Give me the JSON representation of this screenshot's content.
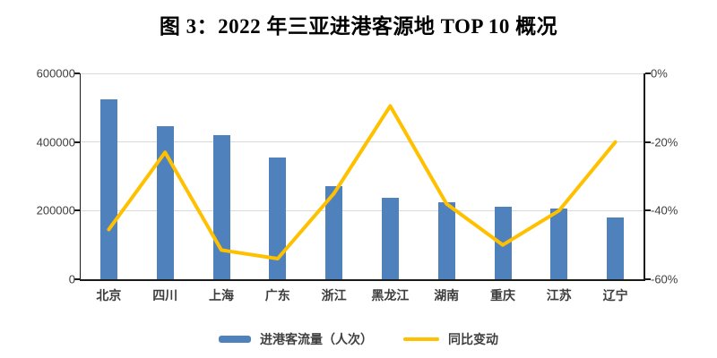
{
  "title": "图 3：2022 年三亚进港客源地 TOP 10 概况",
  "legend": {
    "bar_label": "进港客流量（人次）",
    "line_label": "同比变动"
  },
  "colors": {
    "bar": "#4f81bd",
    "line": "#ffc000",
    "gridline": "#d9d9d9",
    "axis": "#1a1a1a",
    "tick_text": "#404040"
  },
  "chart_data": {
    "type": "bar",
    "subtype": "combo-bar-line-dual-axis",
    "title": "图 3：2022 年三亚进港客源地 TOP 10 概况",
    "categories": [
      "北京",
      "四川",
      "上海",
      "广东",
      "浙江",
      "黑龙江",
      "湖南",
      "重庆",
      "江苏",
      "辽宁"
    ],
    "series": [
      {
        "name": "进港客流量（人次）",
        "type": "bar",
        "axis": "left",
        "color": "#4f81bd",
        "values": [
          525000,
          446000,
          420000,
          354000,
          271000,
          237000,
          224000,
          212000,
          207000,
          180000
        ]
      },
      {
        "name": "同比变动",
        "type": "line",
        "axis": "right",
        "color": "#ffc000",
        "values": [
          -45.5,
          -23,
          -51.5,
          -54,
          -35,
          -9.5,
          -38,
          -50,
          -40,
          -20
        ],
        "unit": "%"
      }
    ],
    "left_axis": {
      "min": 0,
      "max": 600000,
      "tick_labels": [
        "600000",
        "400000",
        "200000",
        "0"
      ]
    },
    "right_axis": {
      "min": -60,
      "max": 0,
      "tick_labels": [
        "0%",
        "-20%",
        "-40%",
        "-60%"
      ]
    },
    "grid": true,
    "legend_position": "bottom"
  }
}
